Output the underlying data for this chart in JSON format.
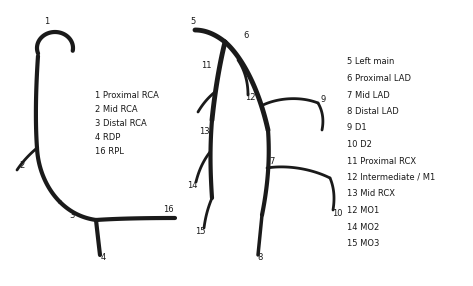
{
  "background_color": "#ffffff",
  "line_color": "#1a1a1a",
  "lw_main": 3.0,
  "lw_branch": 2.0,
  "text_color": "#1a1a1a",
  "label_fontsize": 6.0,
  "legend_fontsize": 6.0,
  "rca_legend": [
    "1 Proximal RCA",
    "2 Mid RCA",
    "3 Distal RCA",
    "4 RDP",
    "16 RPL"
  ],
  "lca_legend": [
    "5 Left main",
    "6 Proximal LAD",
    "7 Mid LAD",
    "8 Distal LAD",
    "9 D1",
    "10 D2",
    "11 Proximal RCX",
    "12 Intermediate / M1",
    "13 Mid RCX",
    "12 MO1",
    "14 MO2",
    "15 MO3"
  ]
}
